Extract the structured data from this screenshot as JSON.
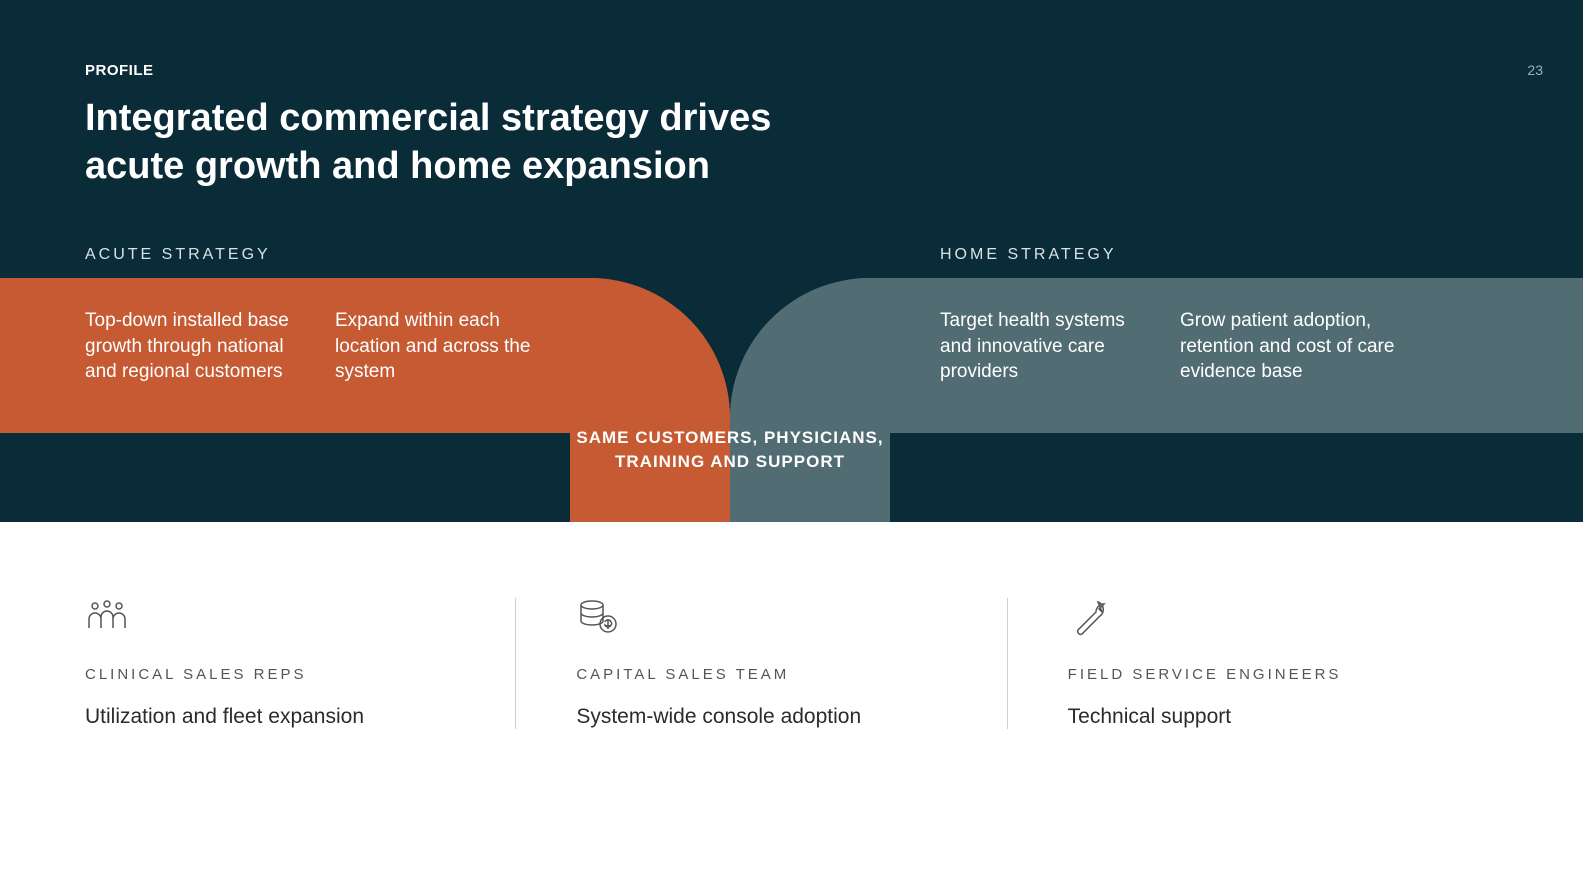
{
  "meta": {
    "eyebrow": "PROFILE",
    "page_number": "23",
    "title": "Integrated commercial strategy drives\nacute growth and home expansion"
  },
  "colors": {
    "bg_dark": "#0a2b38",
    "acute": "#c55a33",
    "home": "#526c74",
    "white": "#ffffff",
    "icon_gray": "#555555",
    "divider": "#cfcfcf"
  },
  "strategy": {
    "acute": {
      "label": "ACUTE STRATEGY",
      "col1": "Top-down installed base growth through national and regional customers",
      "col2": "Expand within each location and across the system"
    },
    "center": "SAME CUSTOMERS, PHYSICIANS, TRAINING AND SUPPORT",
    "home": {
      "label": "HOME STRATEGY",
      "col1": "Target health systems and innovative care providers",
      "col2": "Grow patient adoption, retention and cost of care evidence base"
    }
  },
  "roles": [
    {
      "icon": "people-icon",
      "label": "CLINICAL SALES REPS",
      "desc": "Utilization and fleet expansion"
    },
    {
      "icon": "money-icon",
      "label": "CAPITAL SALES TEAM",
      "desc": "System-wide console adoption"
    },
    {
      "icon": "wrench-icon",
      "label": "FIELD SERVICE ENGINEERS",
      "desc": "Technical support"
    }
  ]
}
